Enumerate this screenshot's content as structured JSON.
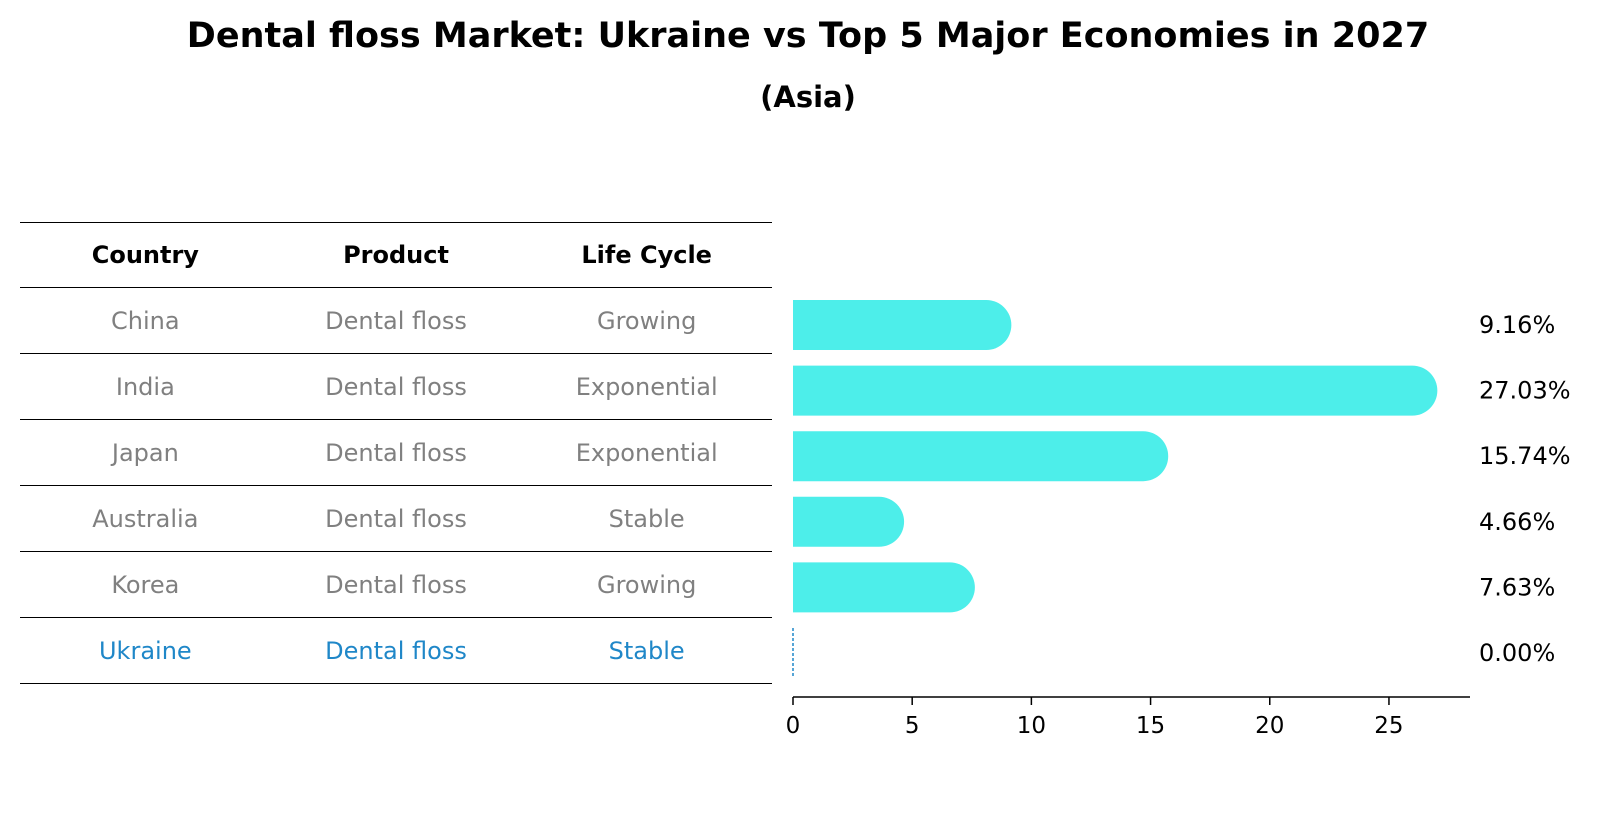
{
  "title": "Dental floss Market: Ukraine vs Top 5 Major Economies in 2027",
  "subtitle": "(Asia)",
  "colors": {
    "bar": "#4deeea",
    "highlight": "#1f87c8",
    "muted_text": "#808080",
    "header_text": "#000000"
  },
  "table": {
    "headers": [
      "Country",
      "Product",
      "Life Cycle"
    ],
    "rows": [
      [
        "China",
        "Dental floss",
        "Growing"
      ],
      [
        "India",
        "Dental floss",
        "Exponential"
      ],
      [
        "Japan",
        "Dental floss",
        "Exponential"
      ],
      [
        "Australia",
        "Dental floss",
        "Stable"
      ],
      [
        "Korea",
        "Dental floss",
        "Growing"
      ],
      [
        "Ukraine",
        "Dental floss",
        "Stable"
      ]
    ],
    "highlight_row": 5
  },
  "chart_data": {
    "type": "bar",
    "orientation": "horizontal",
    "categories": [
      "China",
      "India",
      "Japan",
      "Australia",
      "Korea",
      "Ukraine"
    ],
    "values": [
      9.16,
      27.03,
      15.74,
      4.66,
      7.63,
      0.0
    ],
    "value_labels": [
      "9.16%",
      "27.03%",
      "15.74%",
      "4.66%",
      "7.63%",
      "0.00%"
    ],
    "xlim": [
      0,
      28.4
    ],
    "xticks": [
      0,
      5,
      10,
      15,
      20,
      25
    ],
    "grid": false,
    "legend": "none"
  }
}
